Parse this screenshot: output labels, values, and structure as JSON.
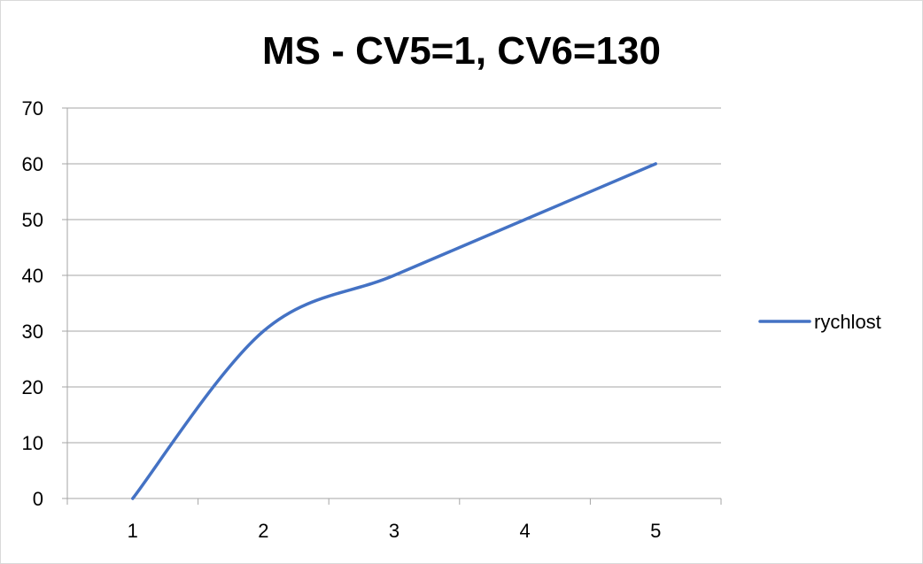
{
  "chart_data": {
    "type": "line",
    "title": "MS - CV5=1, CV6=130",
    "xlabel": "",
    "ylabel": "",
    "categories": [
      "1",
      "2",
      "3",
      "4",
      "5"
    ],
    "series": [
      {
        "name": "rychlost",
        "values": [
          0,
          30,
          40,
          50,
          60
        ],
        "color": "#4472c4",
        "smooth": true
      }
    ],
    "ylim": [
      0,
      70
    ],
    "yticks": [
      0,
      10,
      20,
      30,
      40,
      50,
      60,
      70
    ],
    "grid": true,
    "legend": "right"
  }
}
